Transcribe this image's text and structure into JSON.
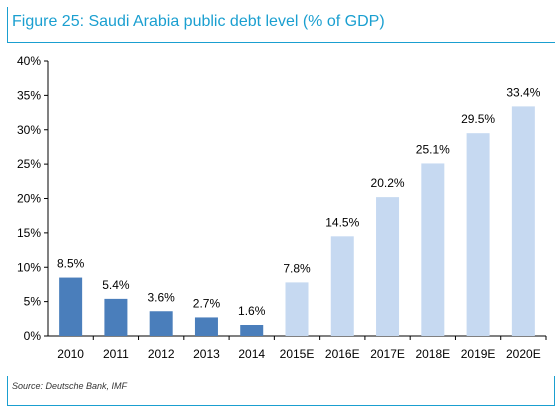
{
  "figure": {
    "title": "Figure 25: Saudi Arabia public debt level (% of GDP)",
    "source": "Source: Deutsche Bank, IMF"
  },
  "colors": {
    "actual_bar": "#4a7ebb",
    "estimate_bar": "#c6d9f1",
    "accent": "#1a9fd0"
  },
  "chart_data": {
    "type": "bar",
    "title": "Figure 25: Saudi Arabia public debt level (% of GDP)",
    "xlabel": "",
    "ylabel": "",
    "categories": [
      "2010",
      "2011",
      "2012",
      "2013",
      "2014",
      "2015E",
      "2016E",
      "2017E",
      "2018E",
      "2019E",
      "2020E"
    ],
    "values": [
      8.5,
      5.4,
      3.6,
      2.7,
      1.6,
      7.8,
      14.5,
      20.2,
      25.1,
      29.5,
      33.4
    ],
    "value_labels": [
      "8.5%",
      "5.4%",
      "3.6%",
      "2.7%",
      "1.6%",
      "7.8%",
      "14.5%",
      "20.2%",
      "25.1%",
      "29.5%",
      "33.4%"
    ],
    "kind": [
      "actual",
      "actual",
      "actual",
      "actual",
      "actual",
      "estimate",
      "estimate",
      "estimate",
      "estimate",
      "estimate",
      "estimate"
    ],
    "ylim": [
      0,
      40
    ],
    "yticks": [
      0,
      5,
      10,
      15,
      20,
      25,
      30,
      35,
      40
    ],
    "ytick_labels": [
      "0%",
      "5%",
      "10%",
      "15%",
      "20%",
      "25%",
      "30%",
      "35%",
      "40%"
    ],
    "grid": false,
    "legend": "none"
  }
}
